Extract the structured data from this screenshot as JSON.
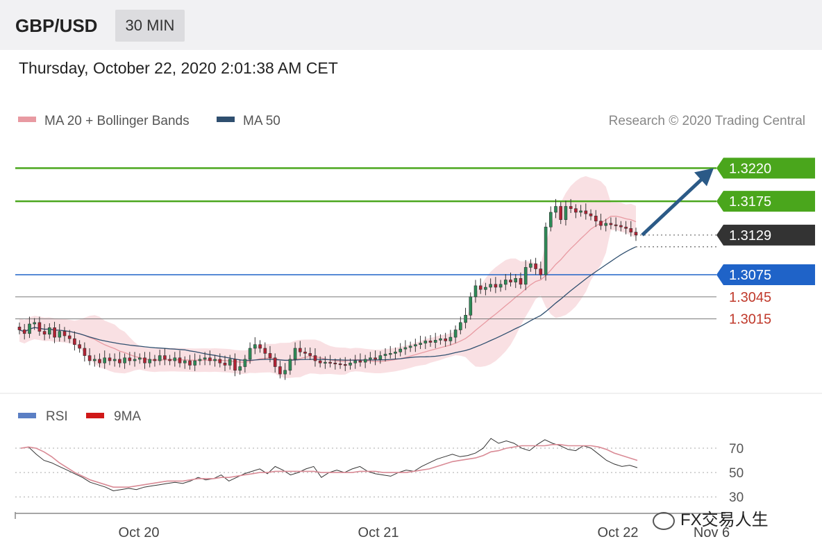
{
  "header": {
    "pair": "GBP/USD",
    "timeframe": "30 MIN"
  },
  "datetime": "Thursday, October 22, 2020 2:01:38 AM CET",
  "legend_main": [
    {
      "label": "MA 20 + Bollinger Bands",
      "color": "#e89aa2"
    },
    {
      "label": "MA 50",
      "color": "#2f4f6f"
    }
  ],
  "credit": "Research © 2020 Trading Central",
  "legend_rsi": [
    {
      "label": "RSI",
      "color": "#5b7fc4"
    },
    {
      "label": "9MA",
      "color": "#d01818"
    }
  ],
  "watermark": "FX交易人生",
  "colors": {
    "green": "#4aa61c",
    "blue": "#1f63c8",
    "dark": "#333333",
    "red": "#c0392b",
    "up": "#2e8b57",
    "down": "#b22234"
  },
  "chart_data": [
    {
      "type": "line",
      "title": "",
      "xlabel": "",
      "ylabel": "",
      "x_ticks": [
        "Oct 20",
        "Oct 21",
        "Oct 22",
        "Nov 6"
      ],
      "ylim": [
        1.2925,
        1.326
      ],
      "levels": [
        {
          "label": "1.3220",
          "value": 1.322,
          "style": "resistance",
          "color": "#4aa61c"
        },
        {
          "label": "1.3175",
          "value": 1.3175,
          "style": "resistance",
          "color": "#4aa61c"
        },
        {
          "label": "1.3129",
          "value": 1.3129,
          "style": "last",
          "color": "#333333"
        },
        {
          "label": "1.3075",
          "value": 1.3075,
          "style": "pivot",
          "color": "#1f63c8"
        },
        {
          "label": "1.3045",
          "value": 1.3045,
          "style": "support",
          "color": "#c0392b"
        },
        {
          "label": "1.3015",
          "value": 1.3015,
          "style": "support",
          "color": "#c0392b"
        }
      ],
      "close_series": [
        1.3,
        1.2995,
        1.3008,
        1.301,
        1.2998,
        1.2994,
        1.3003,
        1.299,
        1.2998,
        1.2992,
        1.2988,
        1.298,
        1.2975,
        1.2965,
        1.2958,
        1.296,
        1.2955,
        1.2962,
        1.2958,
        1.296,
        1.2955,
        1.2962,
        1.2958,
        1.296,
        1.2962,
        1.2955,
        1.296,
        1.2958,
        1.2965,
        1.296,
        1.2958,
        1.2962,
        1.2955,
        1.2958,
        1.2952,
        1.2958,
        1.296,
        1.2962,
        1.2958,
        1.296,
        1.2955,
        1.2952,
        1.296,
        1.2945,
        1.295,
        1.296,
        1.2975,
        1.298,
        1.2975,
        1.2968,
        1.2962,
        1.295,
        1.294,
        1.2945,
        1.296,
        1.2975,
        1.297,
        1.2968,
        1.2965,
        1.2958,
        1.2955,
        1.2956,
        1.2955,
        1.2954,
        1.2953,
        1.2952,
        1.2955,
        1.2958,
        1.2956,
        1.296,
        1.2962,
        1.296,
        1.2965,
        1.2967,
        1.2968,
        1.297,
        1.2974,
        1.2976,
        1.2978,
        1.298,
        1.2982,
        1.2985,
        1.2983,
        1.2986,
        1.2988,
        1.2985,
        1.299,
        1.3,
        1.301,
        1.302,
        1.3045,
        1.306,
        1.3055,
        1.3058,
        1.3062,
        1.3058,
        1.3062,
        1.3068,
        1.3065,
        1.307,
        1.3062,
        1.3085,
        1.309,
        1.3083,
        1.3075,
        1.314,
        1.316,
        1.3168,
        1.315,
        1.3168,
        1.3165,
        1.316,
        1.3162,
        1.3158,
        1.3155,
        1.3148,
        1.3142,
        1.3145,
        1.3143,
        1.3142,
        1.314,
        1.3138,
        1.3133,
        1.3129
      ],
      "series": [
        {
          "name": "MA 20 + Bollinger Bands",
          "kind": "ma20_band"
        },
        {
          "name": "MA 50",
          "kind": "ma50"
        }
      ]
    },
    {
      "type": "line",
      "title": "",
      "y_ticks": [
        "70",
        "50",
        "30"
      ],
      "ylim": [
        25,
        82
      ],
      "series": [
        {
          "name": "RSI",
          "values": [
            70,
            71,
            65,
            60,
            58,
            55,
            52,
            49,
            46,
            42,
            40,
            38,
            35,
            36,
            37,
            36,
            38,
            39,
            40,
            41,
            42,
            41,
            43,
            46,
            44,
            45,
            48,
            43,
            46,
            49,
            51,
            53,
            49,
            55,
            52,
            48,
            50,
            53,
            55,
            46,
            50,
            52,
            50,
            53,
            55,
            51,
            49,
            48,
            47,
            50,
            52,
            51,
            55,
            58,
            61,
            63,
            65,
            63,
            64,
            66,
            70,
            78,
            74,
            76,
            74,
            70,
            68,
            73,
            77,
            74,
            72,
            69,
            68,
            72,
            70,
            65,
            60,
            57,
            55,
            56,
            54
          ]
        },
        {
          "name": "9MA",
          "values": [
            70,
            71,
            70,
            67,
            63,
            58,
            54,
            50,
            47,
            44,
            42,
            40,
            38,
            38,
            38,
            39,
            40,
            41,
            42,
            43,
            43,
            43,
            44,
            45,
            45,
            45,
            46,
            46,
            47,
            48,
            49,
            50,
            50,
            51,
            51,
            51,
            51,
            51,
            51,
            50,
            50,
            50,
            50,
            50,
            51,
            51,
            51,
            50,
            50,
            50,
            50,
            51,
            52,
            53,
            55,
            57,
            59,
            60,
            61,
            62,
            64,
            67,
            68,
            70,
            71,
            72,
            72,
            72,
            72,
            73,
            73,
            72,
            72,
            72,
            72,
            71,
            69,
            66,
            64,
            62,
            60
          ]
        }
      ]
    }
  ]
}
